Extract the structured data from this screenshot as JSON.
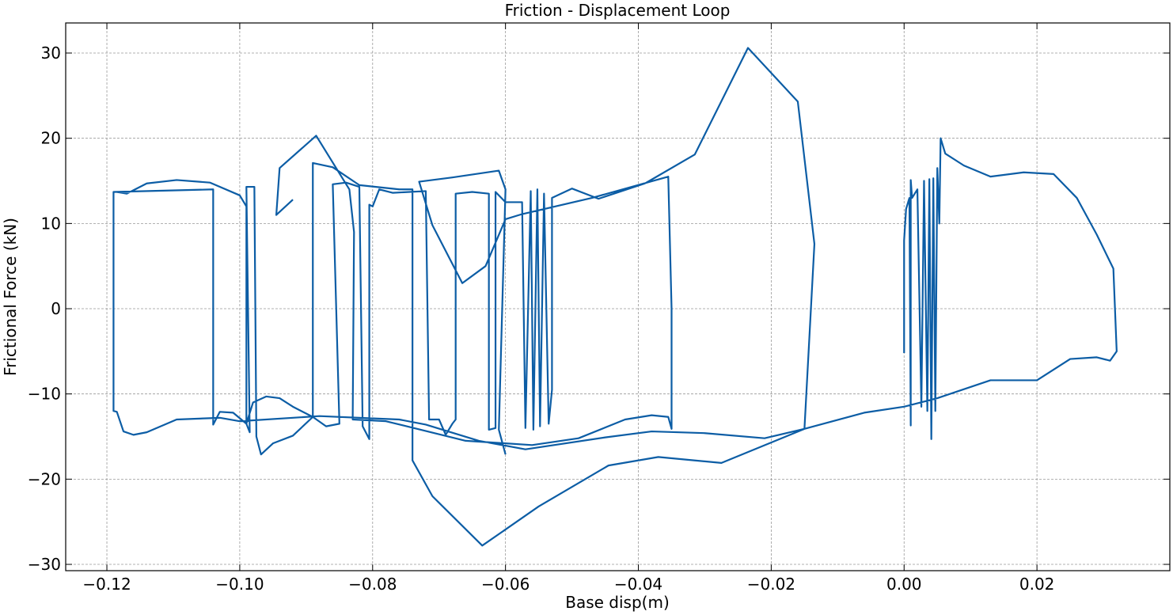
{
  "chart_data": {
    "type": "line",
    "title": "Friction - Displacement Loop",
    "x_label": "Base disp(m)",
    "y_label": "Frictional Force (kN)",
    "color": "#0c5da5",
    "grid": true,
    "xlim": [
      -0.1262,
      0.04
    ],
    "ylim": [
      -30.74,
      33.53
    ],
    "xticks": [
      {
        "value": -0.12,
        "label": "−0.12"
      },
      {
        "value": -0.1,
        "label": "−0.10"
      },
      {
        "value": -0.08,
        "label": "−0.08"
      },
      {
        "value": -0.06,
        "label": "−0.06"
      },
      {
        "value": -0.04,
        "label": "−0.04"
      },
      {
        "value": -0.02,
        "label": "−0.02"
      },
      {
        "value": 0,
        "label": "0.00"
      },
      {
        "value": 0.02,
        "label": "0.02"
      }
    ],
    "yticks": [
      {
        "value": -30,
        "label": "−30"
      },
      {
        "value": -20,
        "label": "−20"
      },
      {
        "value": -10,
        "label": "−10"
      },
      0,
      10,
      20,
      30
    ],
    "x": [
      -0.1185,
      -0.117,
      -0.114,
      -0.1095,
      -0.1045,
      -0.1,
      -0.099,
      -0.099,
      -0.0985,
      -0.099,
      -0.0978,
      -0.0975,
      -0.0968,
      -0.095,
      -0.092,
      -0.089,
      -0.087,
      -0.085,
      -0.086,
      -0.084,
      -0.082,
      -0.0815,
      -0.0805,
      -0.0805,
      -0.08,
      -0.079,
      -0.077,
      -0.072,
      -0.0715,
      -0.07,
      -0.069,
      -0.068,
      -0.0675,
      -0.0675,
      -0.065,
      -0.0625,
      -0.0625,
      -0.0615,
      -0.0615,
      -0.06,
      -0.0575,
      -0.057,
      -0.0562,
      -0.0558,
      -0.0552,
      -0.0548,
      -0.0542,
      -0.0535,
      -0.053,
      -0.053,
      -0.05,
      -0.046,
      -0.039,
      -0.0315,
      -0.0235,
      -0.016,
      -0.0135,
      -0.015,
      -0.021,
      -0.03,
      -0.038,
      -0.045,
      -0.057,
      -0.064,
      -0.072,
      -0.076,
      -0.088,
      -0.1,
      -0.103,
      -0.1095,
      -0.114,
      -0.116,
      -0.1175,
      -0.1185,
      -0.119,
      -0.119,
      -0.104,
      -0.104,
      -0.103,
      -0.101,
      -0.099,
      -0.098,
      -0.096,
      -0.094,
      -0.092,
      -0.089,
      -0.089,
      -0.086,
      -0.082,
      -0.076,
      -0.074,
      -0.074,
      -0.071,
      -0.0635,
      -0.055,
      -0.0445,
      -0.037,
      -0.0275,
      -0.015,
      -0.006,
      0,
      0.005,
      0.013,
      0.02,
      0.025,
      0.029,
      0.031,
      0.032,
      0.0315,
      0.029,
      0.026,
      0.0225,
      0.018,
      0.013,
      0.009,
      0.0062,
      0.0055,
      0.0053,
      0.005,
      0.0047,
      0.0044,
      0.0041,
      0.0038,
      0.0035,
      0.003,
      0.0026,
      0.002,
      0.0012,
      0.001,
      0.001,
      0.0008,
      0.0003,
      0,
      0,
      null,
      -0.092,
      -0.0945,
      -0.094,
      -0.0885,
      -0.0835,
      -0.0828,
      -0.083,
      -0.078,
      -0.066,
      -0.056,
      -0.049,
      -0.042,
      -0.038,
      -0.0355,
      -0.035,
      -0.035,
      -0.0355,
      -0.047,
      -0.0575,
      -0.06,
      -0.063,
      -0.0665,
      -0.071,
      -0.073,
      -0.068,
      -0.061,
      -0.06,
      -0.061,
      -0.06
    ],
    "values": [
      13.7,
      13.5,
      14.7,
      15.1,
      14.8,
      13.3,
      12,
      -13.5,
      -14.5,
      14.3,
      14.3,
      -15,
      -17.1,
      -15.8,
      -14.9,
      -12.7,
      -13.8,
      -13.5,
      14.6,
      14.8,
      14.3,
      -13.8,
      -15.3,
      12.2,
      12,
      14,
      13.6,
      13.8,
      -13,
      -13,
      -14.8,
      -13.5,
      -13,
      13.5,
      13.7,
      13.5,
      -14.2,
      -14,
      13.7,
      12.5,
      12.5,
      -14,
      13.8,
      -14.2,
      14,
      -13.8,
      13.5,
      -13.5,
      -9.5,
      13,
      14.1,
      12.9,
      14.7,
      18.1,
      30.6,
      24.3,
      7.6,
      -14.1,
      -15.2,
      -14.6,
      -14.4,
      -15.1,
      -16.5,
      -15.5,
      -13.6,
      -13,
      -12.6,
      -13.2,
      -12.8,
      -13,
      -14.5,
      -14.8,
      -14.4,
      -12.1,
      -12,
      13.7,
      14,
      -13.6,
      -12.1,
      -12.2,
      -13.5,
      -11,
      -10.3,
      -10.5,
      -11.5,
      -12.7,
      17.1,
      16.6,
      14.5,
      14,
      14,
      -17.8,
      -22,
      -27.8,
      -23.2,
      -18.4,
      -17.4,
      -18.1,
      -14.1,
      -12.2,
      -11.5,
      -10.5,
      -8.4,
      -8.4,
      -5.9,
      -5.7,
      -6.1,
      -5,
      4.7,
      8.7,
      13,
      15.8,
      16,
      15.5,
      16.8,
      18.2,
      20,
      10,
      16.5,
      -12,
      15.3,
      -15.3,
      15.2,
      -12,
      15,
      -11.5,
      14,
      13,
      15.1,
      -13.7,
      13,
      11.7,
      8,
      -5.2,
      null,
      12.8,
      11,
      16.5,
      20.3,
      14,
      9,
      -13,
      -13.2,
      -15.5,
      -16,
      -15.2,
      -13,
      -12.5,
      -12.7,
      -14.1,
      0,
      15.5,
      13,
      11.1,
      10.5,
      5,
      3,
      9.8,
      14.9,
      15.4,
      16.2,
      14,
      -14.2,
      -17.1
    ]
  }
}
